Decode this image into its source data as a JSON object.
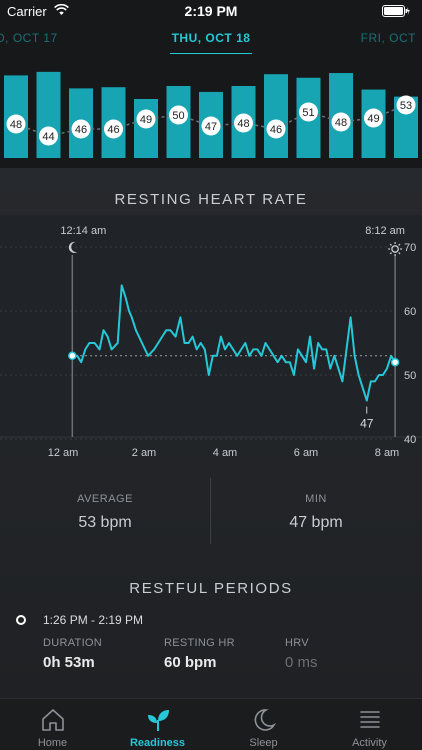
{
  "status_bar": {
    "carrier": "Carrier",
    "time": "2:19 PM"
  },
  "date_nav": {
    "prev": "D, OCT 17",
    "current": "THU, OCT 18",
    "next": "FRI, OCT"
  },
  "overview_bars": [
    {
      "label": "48",
      "level": 0.7
    },
    {
      "label": "44",
      "level": 0.73
    },
    {
      "label": "46",
      "level": 0.59
    },
    {
      "label": "46",
      "level": 0.6
    },
    {
      "label": "49",
      "level": 0.5
    },
    {
      "label": "50",
      "level": 0.61
    },
    {
      "label": "47",
      "level": 0.56
    },
    {
      "label": "48",
      "level": 0.61
    },
    {
      "label": "46",
      "level": 0.71
    },
    {
      "label": "51",
      "level": 0.68
    },
    {
      "label": "48",
      "level": 0.72
    },
    {
      "label": "49",
      "level": 0.58
    },
    {
      "label": "53",
      "level": 0.52
    }
  ],
  "resting_hr": {
    "title": "RESTING HEART RATE",
    "start_time": "12:14 am",
    "end_time": "8:12 am",
    "min_label": "47"
  },
  "chart_data": {
    "type": "line",
    "title": "RESTING HEART RATE",
    "xlabel": "",
    "ylabel": "",
    "x_ticks": [
      "12 am",
      "2 am",
      "4 am",
      "6 am",
      "8 am"
    ],
    "y_ticks": [
      "70",
      "60",
      "50",
      "40"
    ],
    "ylim": [
      40,
      70
    ],
    "average_line": 53,
    "series": [
      {
        "x_hours": [
          0.23,
          0.35,
          0.45,
          0.55,
          0.65,
          0.78,
          0.9,
          1.0,
          1.1,
          1.2,
          1.35,
          1.45,
          1.55,
          1.63,
          1.7,
          1.8,
          1.95,
          2.1,
          2.25,
          2.35,
          2.45,
          2.55,
          2.65,
          2.78,
          2.9,
          3.0,
          3.1,
          3.2,
          3.3,
          3.4,
          3.5,
          3.6,
          3.7,
          3.8,
          3.9,
          4.0,
          4.1,
          4.2,
          4.3,
          4.4,
          4.5,
          4.6,
          4.7,
          4.8,
          4.9,
          5.0,
          5.1,
          5.2,
          5.3,
          5.4,
          5.5,
          5.6,
          5.7,
          5.8,
          5.9,
          6.0,
          6.1,
          6.2,
          6.3,
          6.4,
          6.5,
          6.6,
          6.7,
          6.8,
          6.9,
          7.0,
          7.1,
          7.2,
          7.3,
          7.4,
          7.5,
          7.6,
          7.7,
          7.8,
          7.9,
          8.0,
          8.1,
          8.2
        ],
        "y": [
          53,
          53,
          52,
          54,
          55,
          55,
          54,
          57,
          56,
          54,
          55,
          64,
          62,
          60,
          59,
          57,
          55,
          53,
          54,
          55,
          56,
          57,
          57,
          56,
          59,
          55,
          55,
          56,
          54,
          55,
          54,
          50,
          53,
          53,
          56,
          54,
          55,
          54,
          53,
          54,
          55,
          53,
          54,
          54,
          53,
          55,
          54,
          53,
          52,
          53,
          52,
          52,
          50,
          54,
          53,
          52,
          56,
          51,
          55,
          54,
          54,
          51,
          53,
          51,
          49,
          54,
          59,
          53,
          50,
          48,
          46,
          49,
          49,
          50,
          50,
          51,
          53,
          52
        ]
      }
    ]
  },
  "stats": {
    "average": {
      "label": "AVERAGE",
      "value": "53 bpm"
    },
    "min": {
      "label": "MIN",
      "value": "47 bpm"
    }
  },
  "restful": {
    "title": "RESTFUL PERIODS",
    "time_range": "1:26 PM - 2:19 PM",
    "duration": {
      "label": "DURATION",
      "value": "0h 53m"
    },
    "resting_hr": {
      "label": "RESTING HR",
      "value": "60 bpm"
    },
    "hrv": {
      "label": "HRV",
      "value": "0 ms"
    }
  },
  "tabs": [
    {
      "label": "Home",
      "icon": "home-icon"
    },
    {
      "label": "Readiness",
      "icon": "sprout-icon"
    },
    {
      "label": "Sleep",
      "icon": "moon-icon"
    },
    {
      "label": "Activity",
      "icon": "list-icon"
    }
  ],
  "colors": {
    "accent": "#25c8d6",
    "bar": "#17a5b3",
    "bg": "#1f2124"
  }
}
